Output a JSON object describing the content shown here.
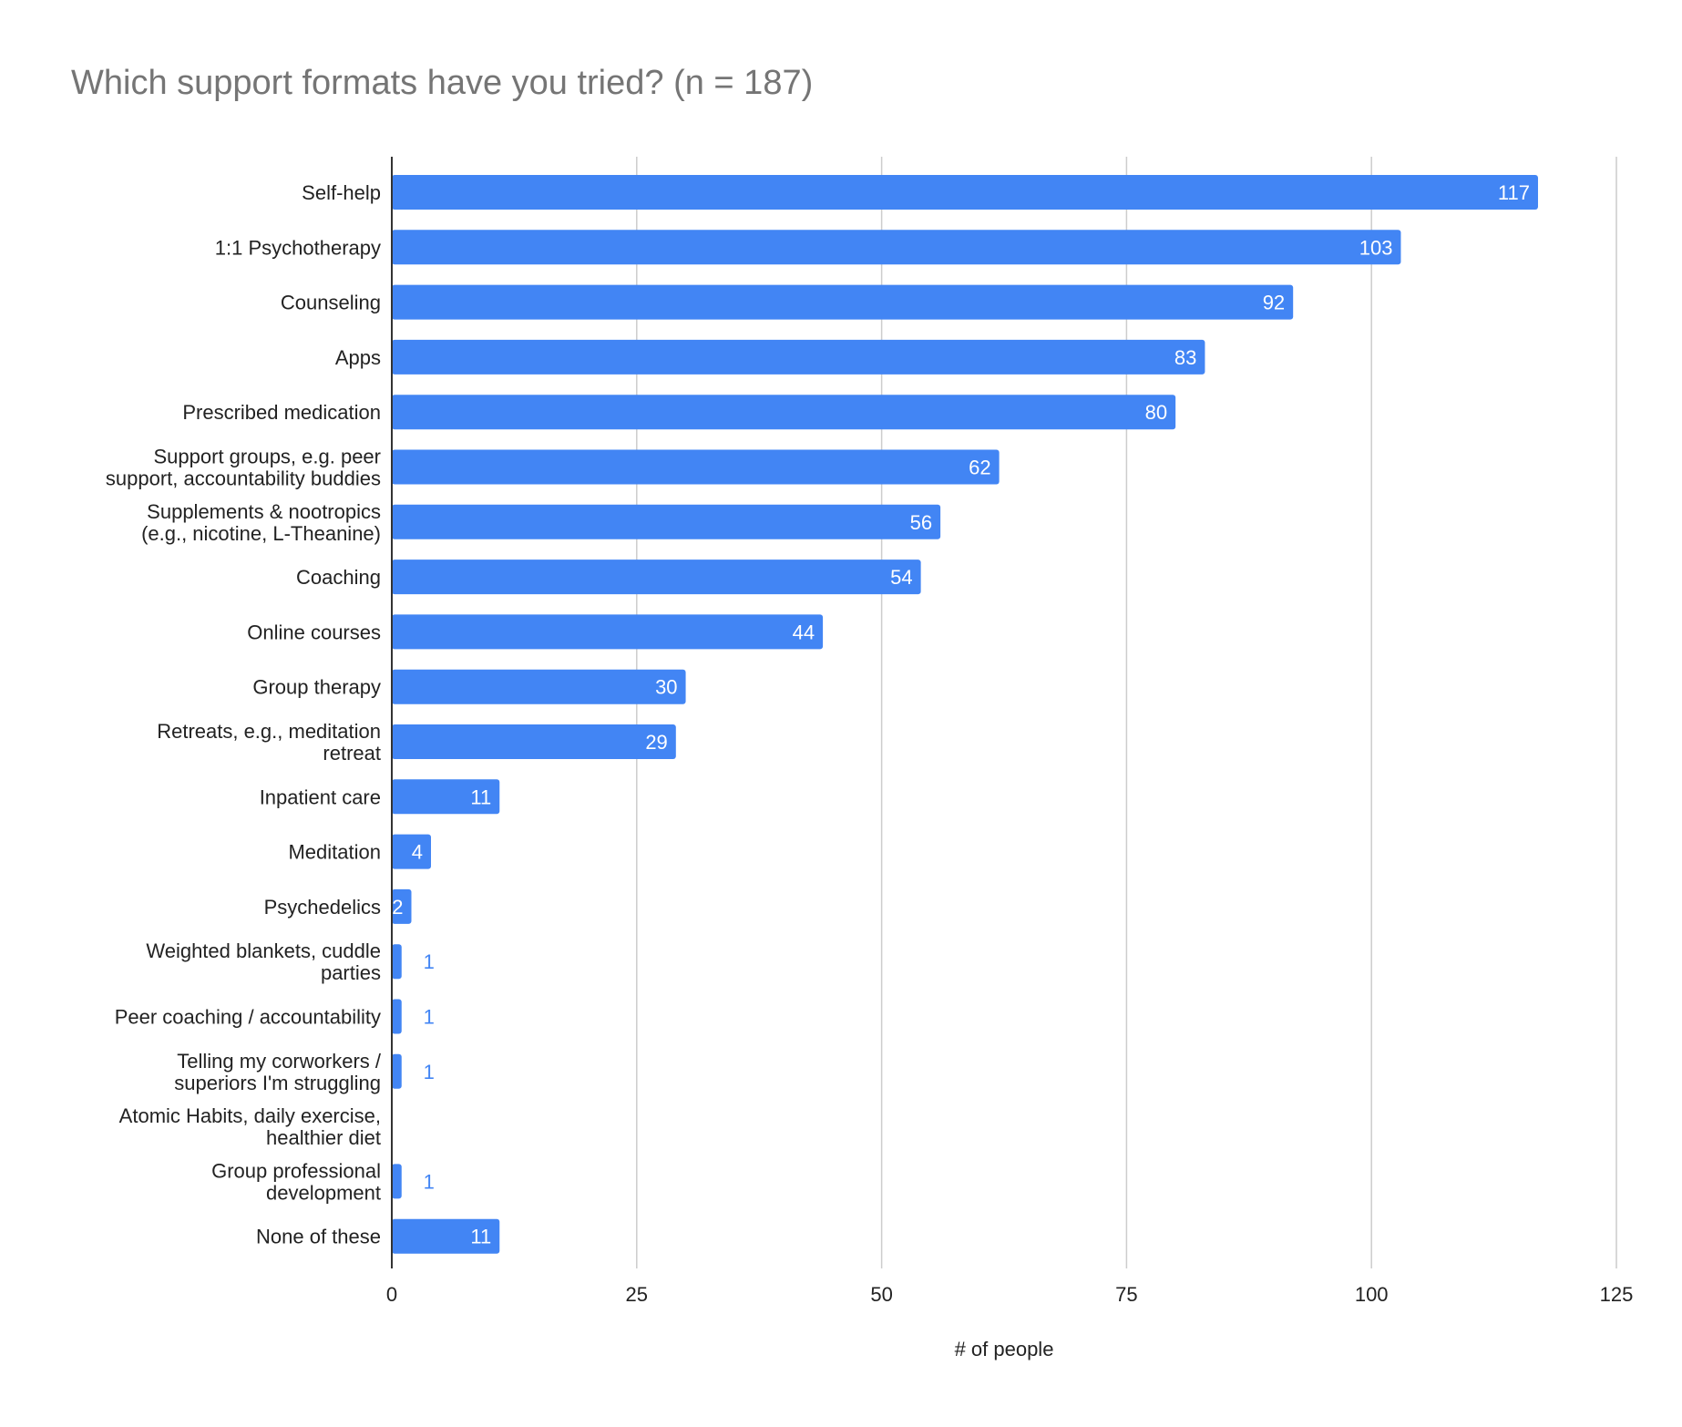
{
  "chart_data": {
    "type": "bar",
    "orientation": "horizontal",
    "title": "Which support formats have you tried? (n = 187)",
    "xlabel": "# of people",
    "ylabel": "",
    "xlim": [
      0,
      125
    ],
    "ticks": [
      0,
      25,
      50,
      75,
      100,
      125
    ],
    "grid": true,
    "legend": "none",
    "bar_color": "#4285f4",
    "categories": [
      [
        "Self-help"
      ],
      [
        "1:1 Psychotherapy"
      ],
      [
        "Counseling"
      ],
      [
        "Apps"
      ],
      [
        "Prescribed medication"
      ],
      [
        "Support groups, e.g. peer",
        "support, accountability buddies"
      ],
      [
        "Supplements & nootropics",
        "(e.g., nicotine, L-Theanine)"
      ],
      [
        "Coaching"
      ],
      [
        "Online courses"
      ],
      [
        "Group therapy"
      ],
      [
        "Retreats, e.g., meditation",
        "retreat"
      ],
      [
        "Inpatient care"
      ],
      [
        "Meditation"
      ],
      [
        "Psychedelics"
      ],
      [
        "Weighted blankets, cuddle",
        "parties"
      ],
      [
        "Peer coaching / accountability"
      ],
      [
        "Telling my corworkers /",
        "superiors I'm struggling"
      ],
      [
        "Atomic Habits, daily exercise,",
        "healthier diet"
      ],
      [
        "Group professional",
        "development"
      ],
      [
        "None of these"
      ]
    ],
    "values": [
      117,
      103,
      92,
      83,
      80,
      62,
      56,
      54,
      44,
      30,
      29,
      11,
      4,
      2,
      1,
      1,
      1,
      null,
      1,
      11
    ]
  }
}
